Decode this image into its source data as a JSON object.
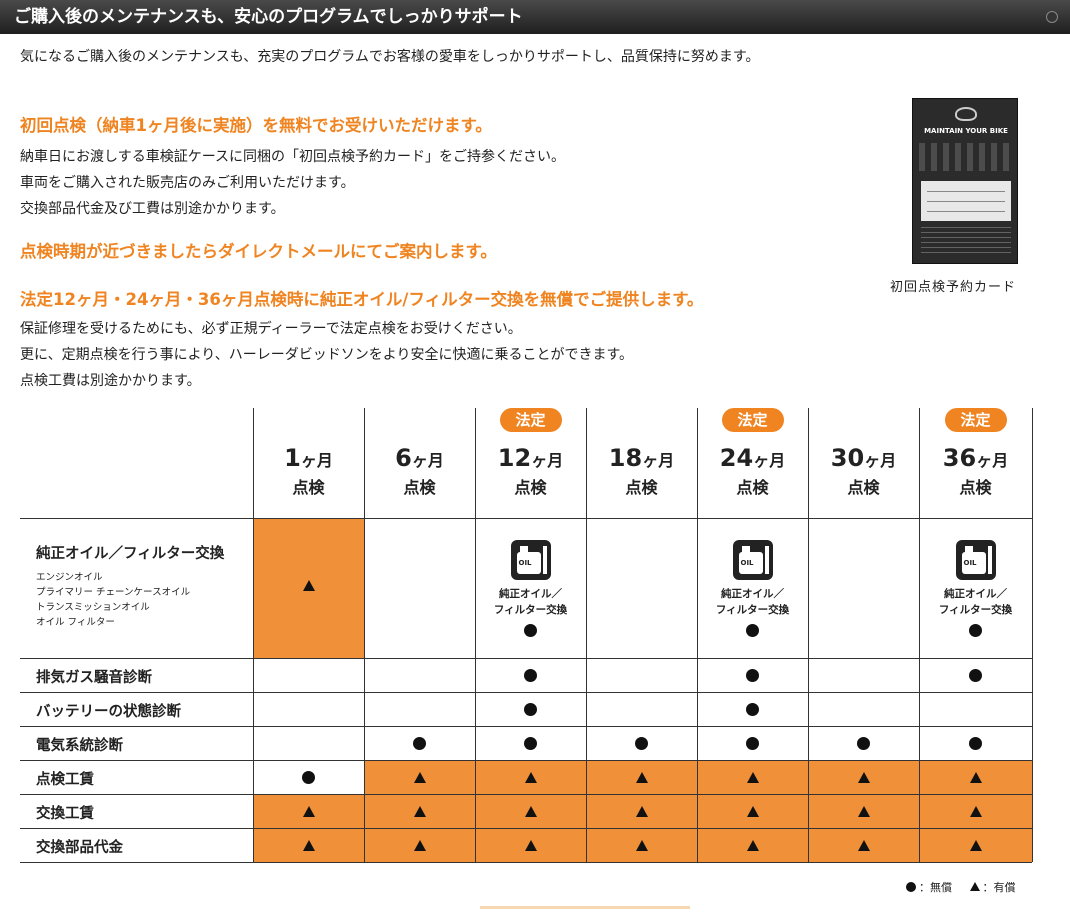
{
  "header": {
    "title": "ご購入後のメンテナンスも、安心のプログラムでしっかりサポート"
  },
  "intro": "気になるご購入後のメンテナンスも、充実のプログラムでお客様の愛車をしっかりサポートし、品質保持に努めます。",
  "section1": {
    "heading": "初回点検（納車1ヶ月後に実施）を無料でお受けいただけます。",
    "lines": [
      "納車日にお渡しする車検証ケースに同梱の「初回点検予約カード」をご持参ください。",
      "車両をご購入された販売店のみご利用いただけます。",
      "交換部品代金及び工費は別途かかります。"
    ]
  },
  "section2": {
    "heading": "点検時期が近づきましたらダイレクトメールにてご案内します。"
  },
  "section3": {
    "heading": "法定12ヶ月・24ヶ月・36ヶ月点検時に純正オイル/フィルター交換を無償でご提供します。",
    "lines": [
      "保証修理を受けるためにも、必ず正規ディーラーで法定点検をお受けください。",
      "更に、定期点検を行う事により、ハーレーダビッドソンをより安全に快適に乗ることができます。",
      "点検工費は別途かかります。"
    ]
  },
  "card": {
    "title": "MAINTAIN YOUR BIKE",
    "caption": "初回点検予約カード"
  },
  "table": {
    "badge": "法定",
    "columns": [
      {
        "num": "1",
        "unit": "ヶ月",
        "kind": "点検",
        "legal": false
      },
      {
        "num": "6",
        "unit": "ヶ月",
        "kind": "点検",
        "legal": false
      },
      {
        "num": "12",
        "unit": "ヶ月",
        "kind": "点検",
        "legal": true
      },
      {
        "num": "18",
        "unit": "ヶ月",
        "kind": "点検",
        "legal": false
      },
      {
        "num": "24",
        "unit": "ヶ月",
        "kind": "点検",
        "legal": true
      },
      {
        "num": "30",
        "unit": "ヶ月",
        "kind": "点検",
        "legal": false
      },
      {
        "num": "36",
        "unit": "ヶ月",
        "kind": "点検",
        "legal": true
      }
    ],
    "oil_row": {
      "label": "純正オイル／フィルター交換",
      "sub": [
        "エンジンオイル",
        "プライマリー チェーンケースオイル",
        "トランスミッションオイル",
        "オイル フィルター"
      ],
      "icon_text": "OIL",
      "caption": [
        "純正オイル／",
        "フィルター交換"
      ]
    },
    "rows": [
      {
        "label": "排気ガス騒音診断",
        "marks": [
          "",
          "",
          "dot",
          "",
          "dot",
          "",
          "dot"
        ]
      },
      {
        "label": "バッテリーの状態診断",
        "marks": [
          "",
          "",
          "dot",
          "",
          "dot",
          "",
          ""
        ]
      },
      {
        "label": "電気系統診断",
        "marks": [
          "",
          "dot",
          "dot",
          "dot",
          "dot",
          "dot",
          "dot"
        ]
      },
      {
        "label": "点検工賃",
        "marks": [
          "dot",
          "tri",
          "tri",
          "tri",
          "tri",
          "tri",
          "tri"
        ]
      },
      {
        "label": "交換工賃",
        "marks": [
          "tri",
          "tri",
          "tri",
          "tri",
          "tri",
          "tri",
          "tri"
        ]
      },
      {
        "label": "交換部品代金",
        "marks": [
          "tri",
          "tri",
          "tri",
          "tri",
          "tri",
          "tri",
          "tri"
        ]
      }
    ]
  },
  "legend": {
    "free": "：無償",
    "paid": "：有償"
  }
}
